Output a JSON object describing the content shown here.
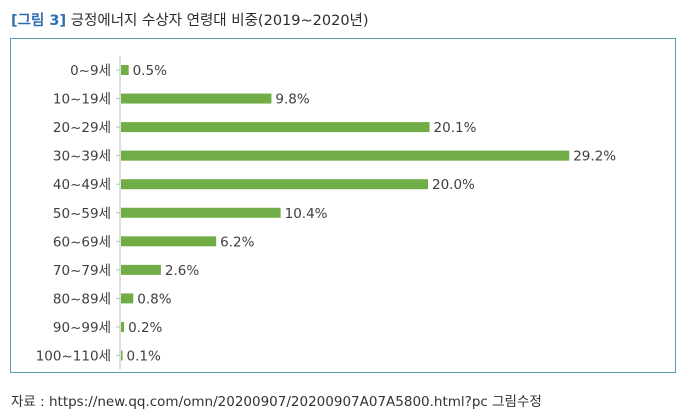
{
  "figure": {
    "label": "[그림 3]",
    "title": "긍정에너지 수상자 연령대 비중(2019~2020년)"
  },
  "colors": {
    "bar": "#70ad47",
    "axis": "#bfbfbf",
    "text": "#404040",
    "frame": "#5a9fb4"
  },
  "chart_data": {
    "type": "bar",
    "orientation": "horizontal",
    "title": "긍정에너지 수상자 연령대 비중(2019~2020년)",
    "xlabel": "",
    "ylabel": "",
    "xlim": [
      0,
      30
    ],
    "grid": false,
    "legend": "none",
    "categories": [
      "0~9세",
      "10~19세",
      "20~29세",
      "30~39세",
      "40~49세",
      "50~59세",
      "60~69세",
      "70~79세",
      "80~89세",
      "90~99세",
      "100~110세"
    ],
    "values": [
      0.5,
      9.8,
      20.1,
      29.2,
      20.0,
      10.4,
      6.2,
      2.6,
      0.8,
      0.2,
      0.1
    ],
    "value_labels": [
      "0.5%",
      "9.8%",
      "20.1%",
      "29.2%",
      "20.0%",
      "10.4%",
      "6.2%",
      "2.6%",
      "0.8%",
      "0.2%",
      "0.1%"
    ]
  },
  "source": "자료 : https://new.qq.com/omn/20200907/20200907A07A5800.html?pc 그림수정"
}
